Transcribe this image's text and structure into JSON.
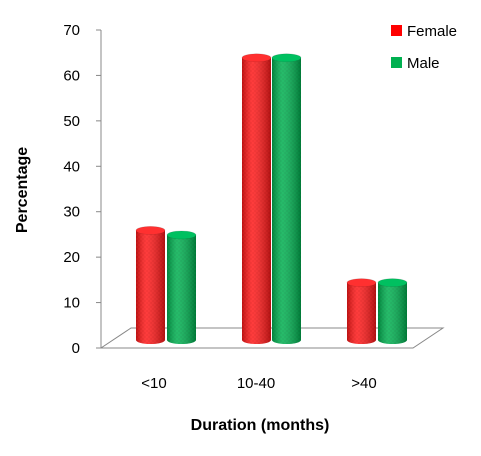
{
  "chart_data": {
    "type": "bar",
    "categories": [
      "<10",
      "10-40",
      ">40"
    ],
    "series": [
      {
        "name": "Female",
        "values": [
          25,
          63,
          13.5
        ],
        "color": "#ff0000"
      },
      {
        "name": "Male",
        "values": [
          24,
          63,
          13.5
        ],
        "color": "#00b050"
      }
    ],
    "xlabel": "Duration  (months)",
    "ylabel": "Percentage",
    "ylim": [
      0,
      70
    ],
    "yticks": [
      0,
      10,
      20,
      30,
      40,
      50,
      60,
      70
    ],
    "grid": false,
    "legend_position": "top-right",
    "style": "3d-cylinder"
  }
}
